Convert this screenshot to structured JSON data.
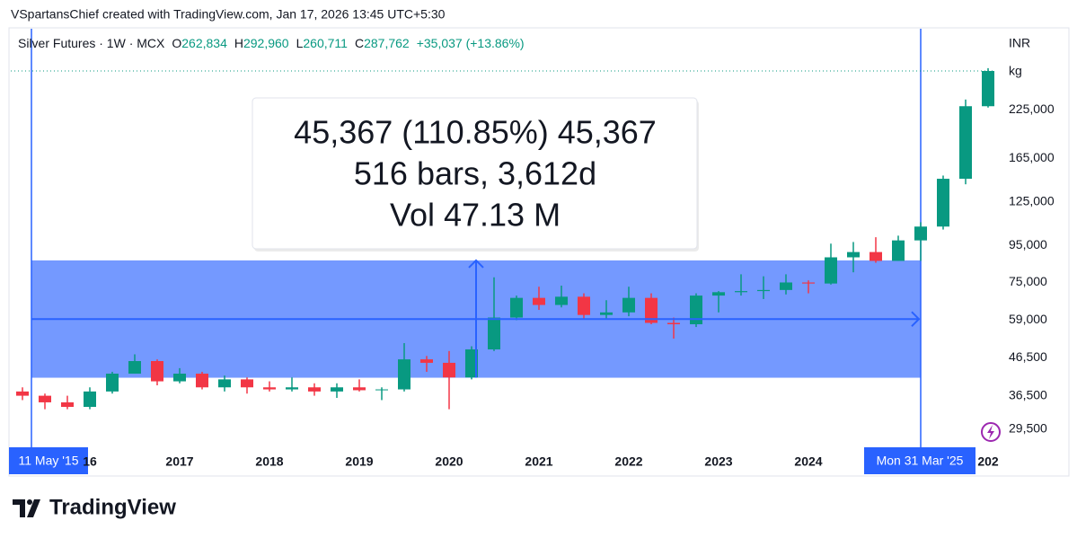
{
  "credit": "VSpartansChief created with TradingView.com, Jan 17, 2026 13:45 UTC+5:30",
  "header": {
    "symbol": "Silver Futures · 1W · MCX",
    "fields": [
      {
        "label": "O",
        "value": "262,834"
      },
      {
        "label": "H",
        "value": "292,960"
      },
      {
        "label": "L",
        "value": "260,711"
      },
      {
        "label": "C",
        "value": "287,762"
      }
    ],
    "change": "+35,037 (+13.86%)"
  },
  "measure": {
    "lines": [
      "45,367 (110.85%) 45,367",
      "516 bars, 3,612d",
      "Vol 47.13 M"
    ],
    "from_label": "11 May '15",
    "to_label": "Mon 31 Mar '25",
    "low": 40926,
    "high": 86293
  },
  "logo": "TradingView",
  "chart_data": {
    "type": "candlestick",
    "currency": "INR",
    "unit": "kg",
    "log_scale": true,
    "up_color": "#089981",
    "down_color": "#f23645",
    "categories": [
      null,
      null,
      null,
      "16",
      null,
      null,
      null,
      "2017",
      null,
      null,
      null,
      "2018",
      null,
      null,
      null,
      "2019",
      null,
      null,
      null,
      "2020",
      null,
      null,
      null,
      "2021",
      null,
      null,
      null,
      "2022",
      null,
      null,
      null,
      "2023",
      null,
      null,
      null,
      "2024",
      null,
      null,
      null,
      null,
      null,
      null,
      null,
      "202"
    ],
    "open": [
      37500,
      36500,
      35000,
      34000,
      37500,
      42000,
      45500,
      40000,
      42000,
      38500,
      40500,
      38500,
      38000,
      38500,
      37500,
      38500,
      37800,
      38000,
      46000,
      45000,
      41000,
      49000,
      60000,
      68000,
      65000,
      68500,
      61000,
      62000,
      68000,
      58000,
      57500,
      69000,
      70500,
      71000,
      71500,
      75000,
      74500,
      88000,
      91000,
      86000,
      98000,
      107000,
      145000,
      230000
    ],
    "high": [
      38500,
      37000,
      36500,
      38500,
      42500,
      47500,
      46000,
      43500,
      42500,
      41500,
      41000,
      40000,
      41000,
      39500,
      39500,
      40500,
      38500,
      51000,
      47000,
      48500,
      50000,
      77500,
      69000,
      73000,
      73500,
      70000,
      67000,
      73000,
      70000,
      60000,
      70000,
      71000,
      79000,
      78000,
      79000,
      76000,
      96000,
      97000,
      100000,
      101000,
      110000,
      148000,
      240000,
      292960
    ],
    "low": [
      35500,
      33500,
      33500,
      33500,
      37000,
      42000,
      39000,
      39500,
      38000,
      37500,
      37000,
      37500,
      37500,
      36500,
      36000,
      37500,
      35500,
      37500,
      42500,
      33500,
      40500,
      48500,
      59000,
      63000,
      64000,
      59500,
      59500,
      60500,
      57500,
      52500,
      56500,
      62000,
      69000,
      67500,
      69500,
      70000,
      74000,
      80000,
      85000,
      86000,
      86000,
      105000,
      140000,
      228000
    ],
    "close": [
      36500,
      35000,
      34000,
      37500,
      42000,
      45500,
      40000,
      42000,
      38500,
      40500,
      38500,
      38000,
      38500,
      37500,
      38500,
      37800,
      38000,
      46000,
      45000,
      41000,
      49000,
      60000,
      68000,
      65000,
      68500,
      61000,
      62000,
      68000,
      58000,
      57500,
      69000,
      70500,
      71000,
      71500,
      75000,
      74500,
      88000,
      91000,
      86000,
      98000,
      107000,
      145000,
      230000,
      287762
    ],
    "ylim": [
      26000,
      370000
    ],
    "yticks": [
      {
        "value": 29500,
        "label": "29,500"
      },
      {
        "value": 36500,
        "label": "36,500"
      },
      {
        "value": 46500,
        "label": "46,500"
      },
      {
        "value": 59000,
        "label": "59,000"
      },
      {
        "value": 75000,
        "label": "75,000"
      },
      {
        "value": 95000,
        "label": "95,000"
      },
      {
        "value": 125000,
        "label": "125,000"
      },
      {
        "value": 165000,
        "label": "165,000"
      },
      {
        "value": 225000,
        "label": "225,000"
      }
    ]
  }
}
